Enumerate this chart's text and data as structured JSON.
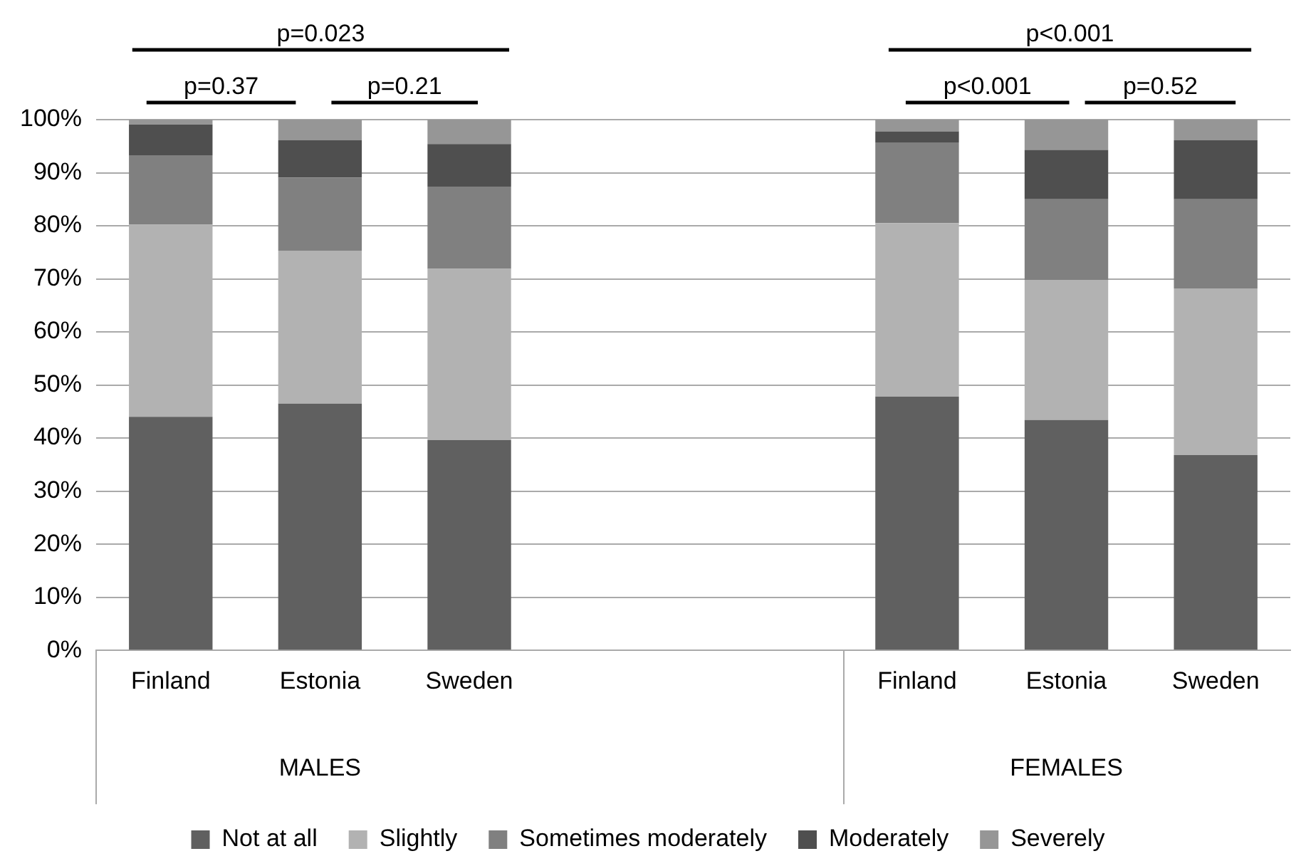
{
  "chart_data": {
    "type": "bar",
    "stacked": true,
    "categories": [
      "Finland",
      "Estonia",
      "Sweden",
      null,
      null,
      "Finland",
      "Estonia",
      "Sweden"
    ],
    "series": [
      {
        "name": "Not at all",
        "color": "#606060",
        "values": [
          44.0,
          46.5,
          39.6,
          null,
          null,
          47.8,
          43.4,
          36.8
        ]
      },
      {
        "name": "Slightly",
        "color": "#b2b2b2",
        "values": [
          36.2,
          28.8,
          32.3,
          null,
          null,
          32.7,
          26.4,
          31.4
        ]
      },
      {
        "name": "Sometimes moderately",
        "color": "#808080",
        "values": [
          13.1,
          13.8,
          15.5,
          null,
          null,
          15.2,
          15.2,
          16.8
        ]
      },
      {
        "name": "Moderately",
        "color": "#4f4f4f",
        "values": [
          5.8,
          7.0,
          8.0,
          null,
          null,
          2.1,
          9.3,
          11.1
        ]
      },
      {
        "name": "Severely",
        "color": "#969696",
        "values": [
          0.9,
          3.9,
          4.6,
          null,
          null,
          2.2,
          5.7,
          3.9
        ]
      }
    ],
    "ylim": [
      0,
      100
    ],
    "yticks": [
      {
        "value": 0,
        "label": "0%"
      },
      {
        "value": 10,
        "label": "10%"
      },
      {
        "value": 20,
        "label": "20%"
      },
      {
        "value": 30,
        "label": "30%"
      },
      {
        "value": 40,
        "label": "40%"
      },
      {
        "value": 50,
        "label": "50%"
      },
      {
        "value": 60,
        "label": "60%"
      },
      {
        "value": 70,
        "label": "70%"
      },
      {
        "value": 80,
        "label": "80%"
      },
      {
        "value": 90,
        "label": "90%"
      },
      {
        "value": 100,
        "label": "100%"
      }
    ],
    "grid": "y",
    "legend": "bottom",
    "annotations": [
      "p=0.023",
      "p=0.37",
      "p=0.21",
      "p<0.001",
      "p<0.001",
      "p=0.52",
      "MALES",
      "FEMALES"
    ]
  }
}
